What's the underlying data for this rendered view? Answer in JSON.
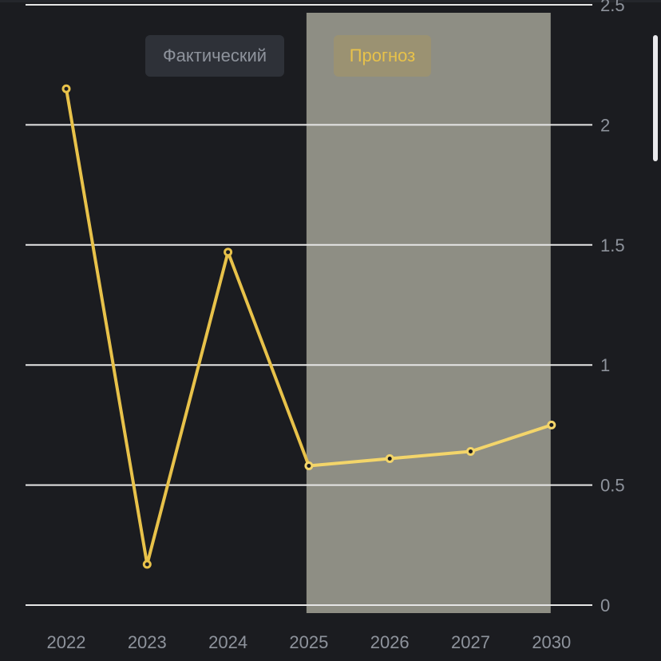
{
  "legend": {
    "actual_label": "Фактический",
    "forecast_label": "Прогноз"
  },
  "colors": {
    "background": "#1b1c20",
    "line": "#e8c24a",
    "forecast_line": "#f3d56a",
    "forecast_band": "#8e8e84",
    "grid": "#e6e6e6",
    "tick_text": "#8e939c"
  },
  "chart_data": {
    "type": "line",
    "x": [
      "2022",
      "2023",
      "2024",
      "2025",
      "2026",
      "2027",
      "2030"
    ],
    "series": [
      {
        "values": [
          2.15,
          0.17,
          1.47,
          0.58,
          0.61,
          0.64,
          0.75
        ]
      }
    ],
    "forecast_start": "2025",
    "forecast_end": "2030",
    "yticks": [
      "0",
      "0.5",
      "1",
      "1.5",
      "2",
      "2.5"
    ],
    "ylim": [
      0,
      2.5
    ],
    "axis_side": "right",
    "grid": true,
    "legend_position": "top"
  }
}
